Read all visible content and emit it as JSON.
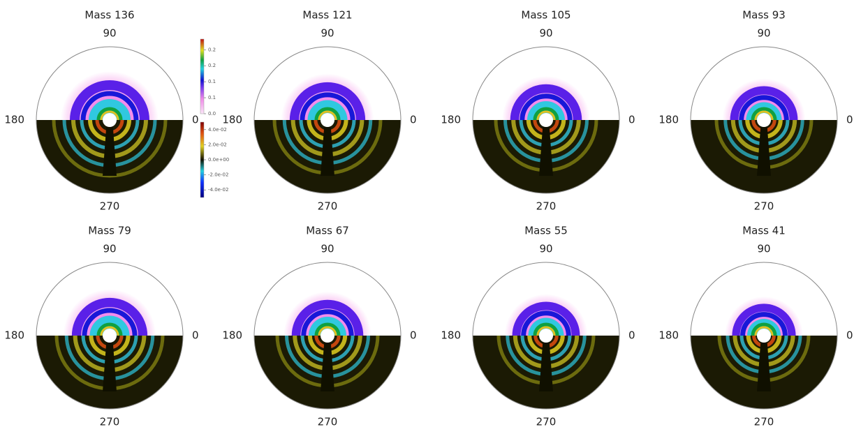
{
  "panels": [
    {
      "title": "Mass 136"
    },
    {
      "title": "Mass 121"
    },
    {
      "title": "Mass 105"
    },
    {
      "title": "Mass 93"
    },
    {
      "title": "Mass 79"
    },
    {
      "title": "Mass 67"
    },
    {
      "title": "Mass 55"
    },
    {
      "title": "Mass 41"
    }
  ],
  "angle_labels": {
    "right": "0",
    "top": "90",
    "left": "180",
    "bottom": "270"
  },
  "colorbars": [
    {
      "lim": [
        0,
        0.28
      ],
      "ticks": [
        {
          "value": 0,
          "label": "0.0"
        },
        {
          "value": 0.06,
          "label": "0.1"
        },
        {
          "value": 0.12,
          "label": "0.1"
        },
        {
          "value": 0.18,
          "label": "0.2"
        },
        {
          "value": 0.24,
          "label": "0.2"
        }
      ]
    },
    {
      "lim": [
        -0.05,
        0.05
      ],
      "ticks": [
        {
          "value": 0.04,
          "label": "4.0e-02"
        },
        {
          "value": 0.02,
          "label": "2.0e-02"
        },
        {
          "value": 0,
          "label": "0.0e+00"
        },
        {
          "value": -0.02,
          "label": "-2.0e-02"
        },
        {
          "value": -0.04,
          "label": "-4.0e-02"
        }
      ]
    }
  ]
}
